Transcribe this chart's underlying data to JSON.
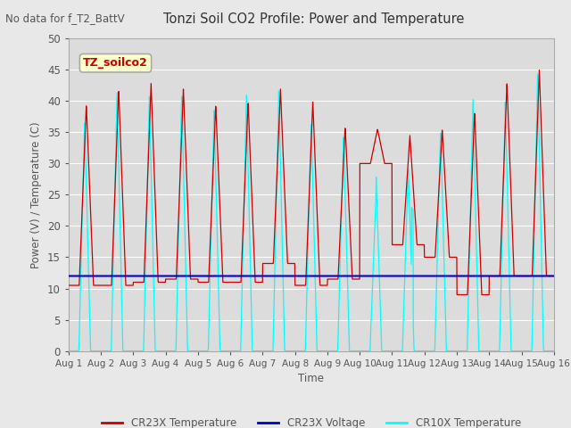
{
  "title": "Tonzi Soil CO2 Profile: Power and Temperature",
  "subtitle": "No data for f_T2_BattV",
  "ylabel": "Power (V) / Temperature (C)",
  "xlabel": "Time",
  "ylim": [
    0,
    50
  ],
  "fig_bg": "#e8e8e8",
  "plot_bg": "#dcdcdc",
  "legend_box_label": "TZ_soilco2",
  "legend_box_color": "#cc0000",
  "legend_box_bg": "#ffffcc",
  "legend_box_edge": "#aaaaaa",
  "x_tick_labels": [
    "Aug 1",
    "Aug 2",
    "Aug 3",
    "Aug 4",
    "Aug 5",
    "Aug 6",
    "Aug 7",
    "Aug 8",
    "Aug 9",
    "Aug 10",
    "Aug 11",
    "Aug 12",
    "Aug 13",
    "Aug 14",
    "Aug 15",
    "Aug 16"
  ],
  "cr23x_color": "#cc0000",
  "cr23x_volt_color": "#0000cc",
  "cr10x_color": "cyan",
  "cr23x_volt_val": 12.0,
  "tick_color": "#555555",
  "grid_color": "#ffffff",
  "label_color": "#555555"
}
